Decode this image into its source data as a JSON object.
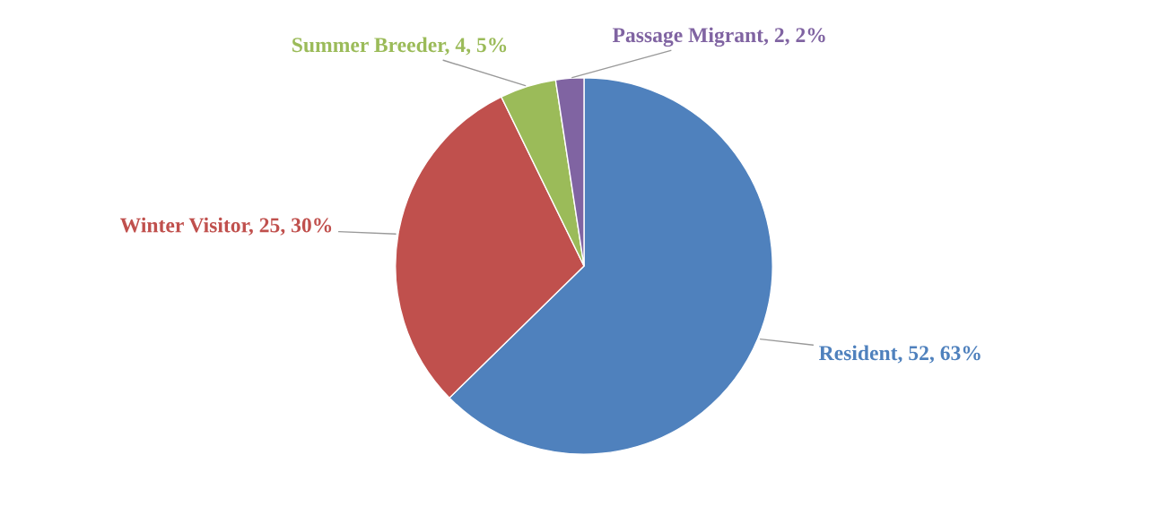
{
  "chart_data": {
    "type": "pie",
    "categories": [
      "Resident",
      "Winter Visitor",
      "Summer Breeder",
      "Passage Migrant"
    ],
    "values": [
      52,
      25,
      4,
      2
    ],
    "value_labels": [
      "52, 63%",
      "25, 30%",
      "4, 5%",
      "2, 2%"
    ],
    "colors": [
      "#4f81bd",
      "#c0504d",
      "#9bbb59",
      "#8064a2"
    ],
    "legend": false
  }
}
